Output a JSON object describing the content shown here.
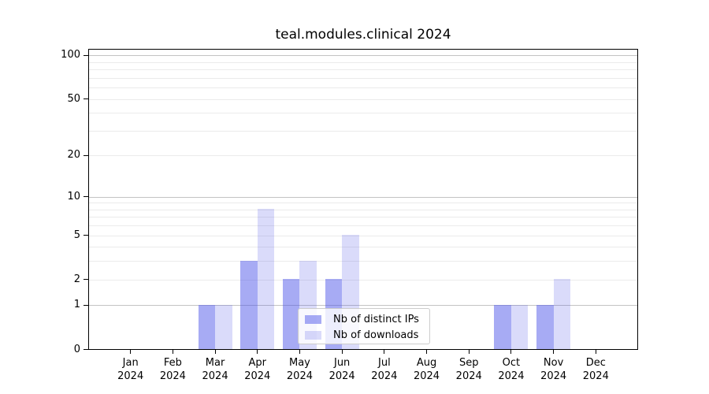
{
  "chart_data": {
    "type": "bar",
    "title": "teal.modules.clinical 2024",
    "categories": [
      "Jan",
      "Feb",
      "Mar",
      "Apr",
      "May",
      "Jun",
      "Jul",
      "Aug",
      "Sep",
      "Oct",
      "Nov",
      "Dec"
    ],
    "x_tick_second_line": "2024",
    "series": [
      {
        "name": "Nb of distinct IPs",
        "values": [
          0,
          0,
          1,
          3,
          2,
          2,
          0,
          0,
          0,
          1,
          1,
          0
        ],
        "color": "rgba(79,87,233,0.50)"
      },
      {
        "name": "Nb of downloads",
        "values": [
          0,
          0,
          1,
          8,
          3,
          5,
          0,
          0,
          0,
          1,
          2,
          0
        ],
        "color": "rgba(79,87,233,0.21)"
      }
    ],
    "yscale": "log1p",
    "ylim": [
      0,
      111
    ],
    "yticks": [
      0,
      1,
      2,
      5,
      10,
      20,
      50,
      100
    ],
    "major_gridlines": [
      1,
      10,
      100
    ],
    "minor_gridlines": [
      2,
      3,
      4,
      5,
      6,
      7,
      8,
      9,
      20,
      30,
      40,
      50,
      60,
      70,
      80,
      90
    ],
    "grid": true,
    "legend_position": "lower center",
    "colors": {
      "grid_major": "#c3c3c3",
      "grid_minor": "#ebebeb",
      "axis": "#000000",
      "text": "#000000",
      "background": "#ffffff"
    }
  },
  "legend": {
    "entries": [
      {
        "label": "Nb of distinct IPs"
      },
      {
        "label": "Nb of downloads"
      }
    ]
  }
}
